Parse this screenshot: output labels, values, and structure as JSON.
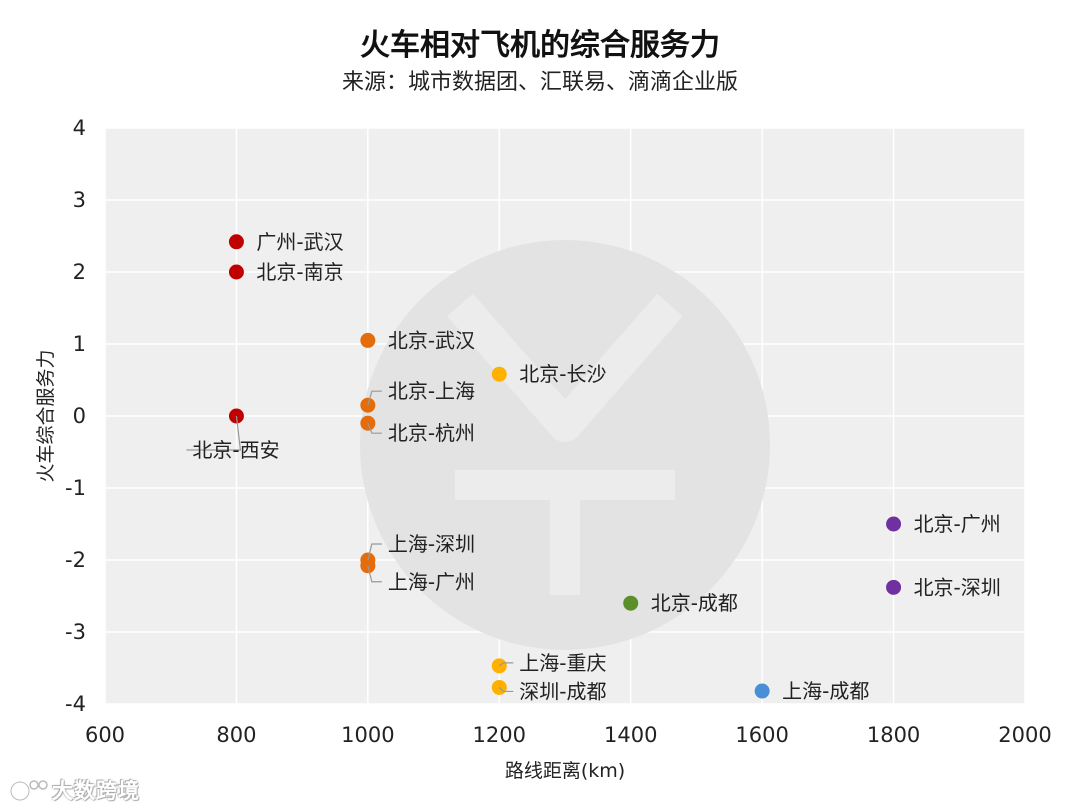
{
  "chart_data": {
    "type": "scatter",
    "title": "火车相对飞机的综合服务力",
    "subtitle": "来源：城市数据团、汇联易、滴滴企业版",
    "xlabel": "路线距离(km)",
    "ylabel": "火车综合服务力",
    "xlim": [
      600,
      2000
    ],
    "ylim": [
      -4,
      4
    ],
    "xticks": [
      "600",
      "800",
      "1000",
      "1200",
      "1400",
      "1600",
      "1800",
      "2000"
    ],
    "yticks": [
      "4",
      "3",
      "2",
      "1",
      "0",
      "-1",
      "-2",
      "-3",
      "-4"
    ],
    "grid": true,
    "points": [
      {
        "label": "广州-武汉",
        "x": 800,
        "y": 2.42,
        "color": "#c00000"
      },
      {
        "label": "北京-南京",
        "x": 800,
        "y": 2.0,
        "color": "#c00000"
      },
      {
        "label": "北京-西安",
        "x": 800,
        "y": 0.0,
        "color": "#c00000"
      },
      {
        "label": "北京-武汉",
        "x": 1000,
        "y": 1.05,
        "color": "#e46c0a"
      },
      {
        "label": "北京-上海",
        "x": 1000,
        "y": 0.15,
        "color": "#e46c0a"
      },
      {
        "label": "北京-杭州",
        "x": 1000,
        "y": -0.1,
        "color": "#e46c0a"
      },
      {
        "label": "上海-深圳",
        "x": 1000,
        "y": -2.0,
        "color": "#e46c0a"
      },
      {
        "label": "上海-广州",
        "x": 1000,
        "y": -2.08,
        "color": "#e46c0a"
      },
      {
        "label": "北京-长沙",
        "x": 1200,
        "y": 0.58,
        "color": "#ffb000"
      },
      {
        "label": "上海-重庆",
        "x": 1200,
        "y": -3.47,
        "color": "#ffb000"
      },
      {
        "label": "深圳-成都",
        "x": 1200,
        "y": -3.77,
        "color": "#ffb000"
      },
      {
        "label": "北京-成都",
        "x": 1400,
        "y": -2.6,
        "color": "#5a8f29"
      },
      {
        "label": "上海-成都",
        "x": 1600,
        "y": -3.82,
        "color": "#4a8fd6"
      },
      {
        "label": "北京-广州",
        "x": 1800,
        "y": -1.5,
        "color": "#7030a0"
      },
      {
        "label": "北京-深圳",
        "x": 1800,
        "y": -2.38,
        "color": "#7030a0"
      }
    ]
  },
  "watermark": {
    "text": "大数跨境"
  }
}
